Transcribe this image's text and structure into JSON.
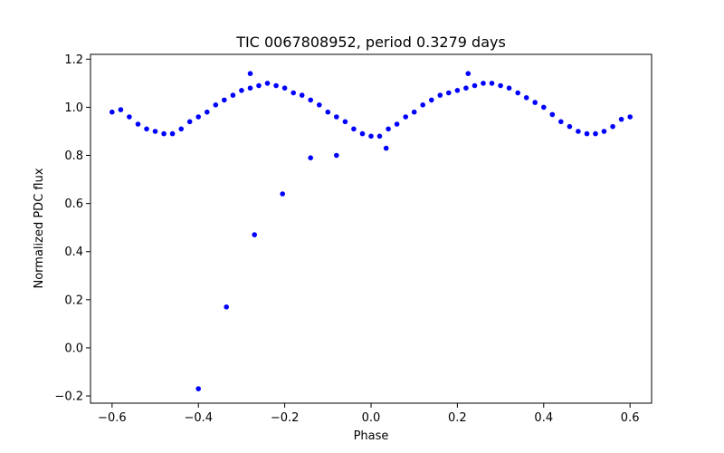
{
  "chart_data": {
    "type": "scatter",
    "title": "TIC 0067808952, period 0.3279 days",
    "xlabel": "Phase",
    "ylabel": "Normalized PDC flux",
    "xlim": [
      -0.65,
      0.65
    ],
    "ylim": [
      -0.23,
      1.22
    ],
    "xticks": [
      -0.6,
      -0.4,
      -0.2,
      0.0,
      0.2,
      0.4,
      0.6
    ],
    "xtick_labels": [
      "−0.6",
      "−0.4",
      "−0.2",
      "0.0",
      "0.2",
      "0.4",
      "0.6"
    ],
    "yticks": [
      -0.2,
      0.0,
      0.2,
      0.4,
      0.6,
      0.8,
      1.0,
      1.2
    ],
    "ytick_labels": [
      "−0.2",
      "0.0",
      "0.2",
      "0.4",
      "0.6",
      "0.8",
      "1.0",
      "1.2"
    ],
    "marker_color": "#0000ff",
    "grid": false,
    "series": [
      {
        "x": [
          -0.6,
          -0.58,
          -0.56,
          -0.54,
          -0.52,
          -0.5,
          -0.48,
          -0.46,
          -0.44,
          -0.42,
          -0.4,
          -0.38,
          -0.36,
          -0.34,
          -0.32,
          -0.3,
          -0.28,
          -0.26,
          -0.24,
          -0.22,
          -0.2,
          -0.18,
          -0.16,
          -0.14,
          -0.12,
          -0.1,
          -0.08,
          -0.06,
          -0.04,
          -0.02,
          0.0,
          0.02,
          0.04,
          0.06,
          0.08,
          0.1,
          0.12,
          0.14,
          0.16,
          0.18,
          0.2,
          0.22,
          0.24,
          0.26,
          0.28,
          0.3,
          0.32,
          0.34,
          0.36,
          0.38,
          0.4,
          0.42,
          0.44,
          0.46,
          0.48,
          0.5,
          0.52,
          0.54,
          0.56,
          0.58,
          0.6,
          -0.4,
          -0.335,
          -0.27,
          -0.205,
          -0.14,
          -0.08,
          -0.28,
          0.035,
          0.225
        ],
        "y": [
          0.98,
          0.99,
          0.96,
          0.93,
          0.91,
          0.9,
          0.89,
          0.89,
          0.91,
          0.94,
          0.96,
          0.98,
          1.01,
          1.03,
          1.05,
          1.07,
          1.08,
          1.09,
          1.1,
          1.09,
          1.08,
          1.06,
          1.05,
          1.03,
          1.01,
          0.98,
          0.96,
          0.94,
          0.91,
          0.89,
          0.88,
          0.88,
          0.91,
          0.93,
          0.96,
          0.98,
          1.01,
          1.03,
          1.05,
          1.06,
          1.07,
          1.08,
          1.09,
          1.1,
          1.1,
          1.09,
          1.08,
          1.06,
          1.04,
          1.02,
          1.0,
          0.97,
          0.94,
          0.92,
          0.9,
          0.89,
          0.89,
          0.9,
          0.92,
          0.95,
          0.96,
          -0.17,
          0.17,
          0.47,
          0.64,
          0.79,
          0.8,
          1.14,
          0.83,
          1.14
        ]
      }
    ]
  }
}
